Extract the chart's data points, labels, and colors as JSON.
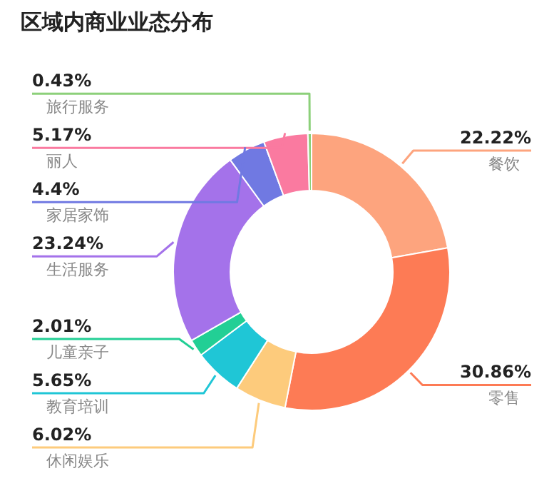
{
  "chart_data": {
    "type": "donut",
    "title": "区域内商业业态分布",
    "categories": [
      "餐饮",
      "零售",
      "休闲娱乐",
      "教育培训",
      "儿童亲子",
      "生活服务",
      "家居家饰",
      "丽人",
      "旅行服务"
    ],
    "values": [
      22.22,
      30.86,
      6.02,
      5.65,
      2.01,
      23.24,
      4.4,
      5.17,
      0.43
    ],
    "value_labels": [
      "22.22%",
      "30.86%",
      "6.02%",
      "5.65%",
      "2.01%",
      "23.24%",
      "4.4%",
      "5.17%",
      "0.43%"
    ],
    "colors": [
      "#fda47e",
      "#fd7b55",
      "#fdcb7c",
      "#1fc6d6",
      "#22cf95",
      "#a472ea",
      "#7079e2",
      "#fa7aa0",
      "#8cd07a"
    ]
  }
}
